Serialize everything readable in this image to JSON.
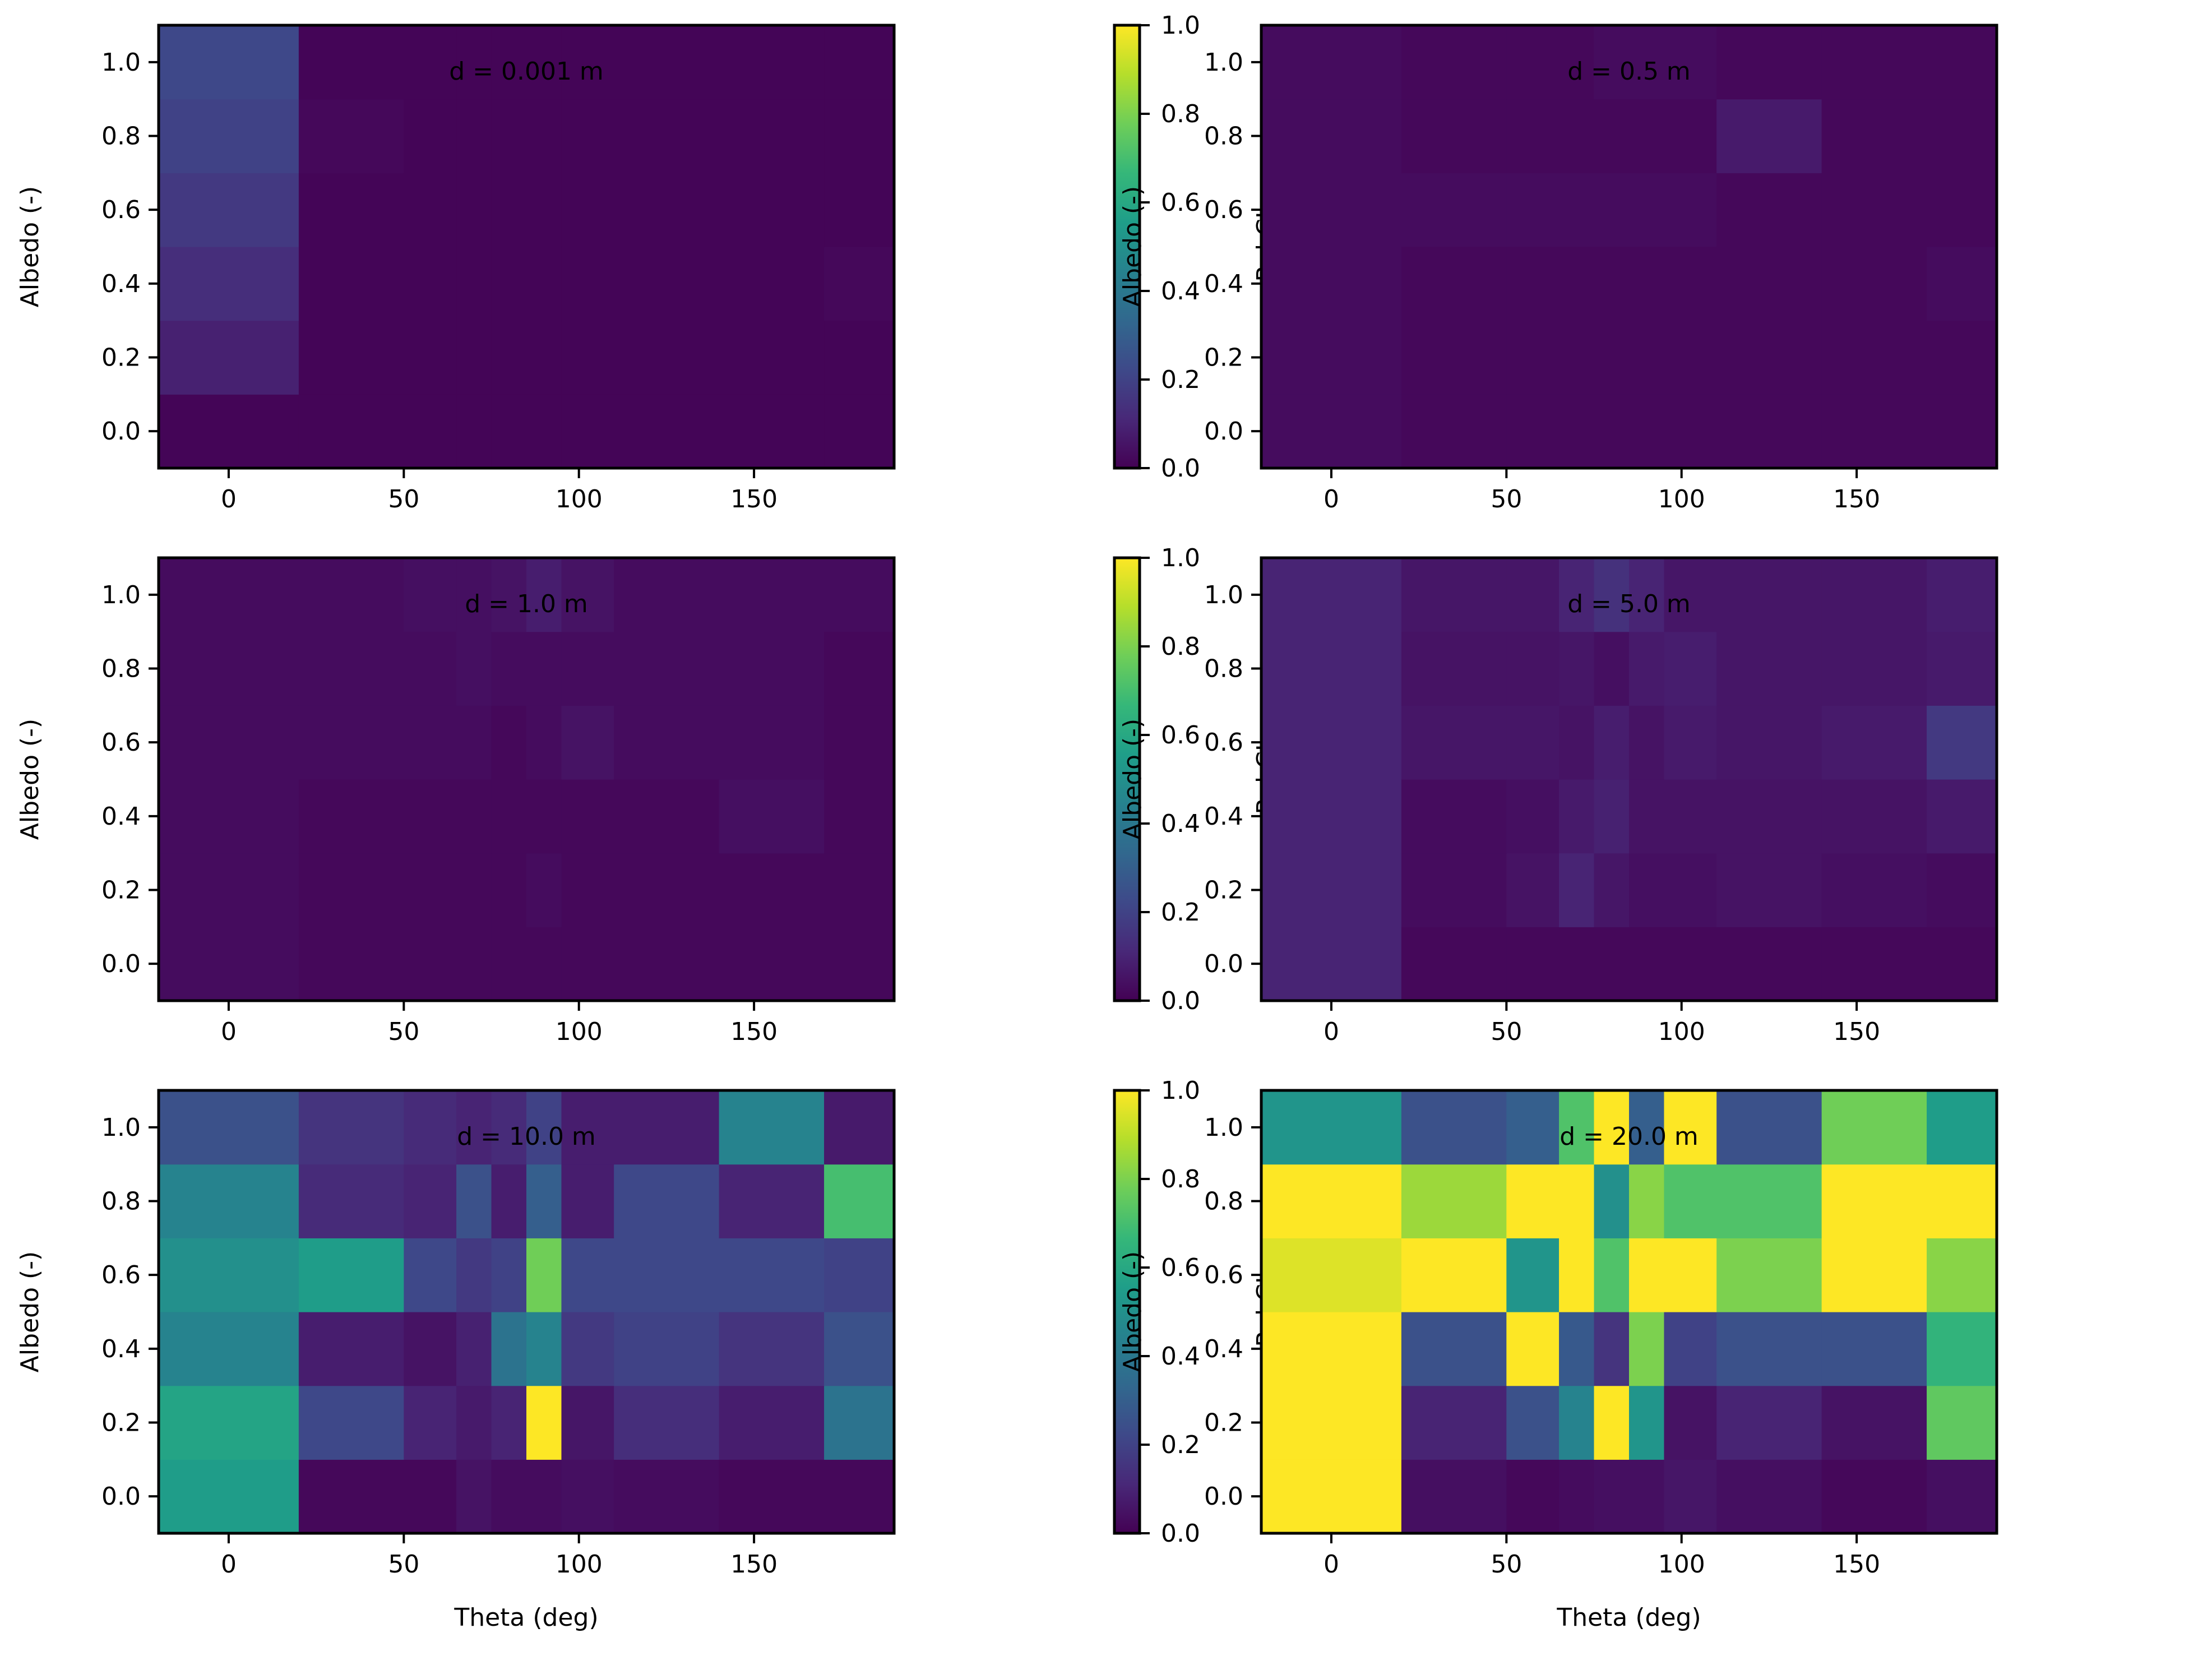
{
  "figure": {
    "xlabel": "Theta (deg)",
    "ylabel": "Albedo (-)",
    "colorbar_label": "Rel CI",
    "colormap": "viridis",
    "colormap_stops": [
      "#440154",
      "#482878",
      "#3e4989",
      "#31688e",
      "#26828e",
      "#1f9e89",
      "#35b779",
      "#6ece58",
      "#b5de2b",
      "#fde725"
    ]
  },
  "chart_data": [
    {
      "type": "heatmap",
      "title": "d = 0.001 m",
      "xlabel": "",
      "ylabel": "Albedo (-)",
      "x_edges": [
        -20,
        20,
        50,
        65,
        75,
        85,
        95,
        110,
        140,
        170,
        190
      ],
      "albedo": [
        0.0,
        0.2,
        0.4,
        0.6,
        0.8,
        1.0
      ],
      "x_ticks": [
        0,
        50,
        100,
        150
      ],
      "y_ticks": [
        0.0,
        0.2,
        0.4,
        0.6,
        0.8,
        1.0
      ],
      "xlim": [
        -20,
        190
      ],
      "ylim": [
        -0.1,
        1.1
      ],
      "values": [
        [
          0.01,
          0.01,
          0.01,
          0.01,
          0.01,
          0.01,
          0.01,
          0.01,
          0.01,
          0.01
        ],
        [
          0.09,
          0.01,
          0.01,
          0.01,
          0.01,
          0.01,
          0.01,
          0.01,
          0.01,
          0.01
        ],
        [
          0.13,
          0.01,
          0.01,
          0.01,
          0.01,
          0.01,
          0.01,
          0.01,
          0.01,
          0.02
        ],
        [
          0.17,
          0.01,
          0.01,
          0.01,
          0.01,
          0.01,
          0.01,
          0.01,
          0.01,
          0.01
        ],
        [
          0.2,
          0.02,
          0.01,
          0.01,
          0.01,
          0.01,
          0.01,
          0.01,
          0.01,
          0.01
        ],
        [
          0.22,
          0.01,
          0.01,
          0.01,
          0.01,
          0.01,
          0.01,
          0.01,
          0.01,
          0.01
        ]
      ],
      "colorbar": {
        "label": "Rel CI",
        "ticks": [
          "0.0",
          "0.2",
          "0.4",
          "0.6",
          "0.8",
          "1.0"
        ],
        "range": [
          0,
          1
        ]
      }
    },
    {
      "type": "heatmap",
      "title": "d = 0.5 m",
      "xlabel": "",
      "ylabel": "Albedo (-)",
      "x_edges": [
        -20,
        20,
        50,
        65,
        75,
        85,
        95,
        110,
        140,
        170,
        190
      ],
      "albedo": [
        0.0,
        0.2,
        0.4,
        0.6,
        0.8,
        1.0
      ],
      "x_ticks": [
        0,
        50,
        100,
        150
      ],
      "y_ticks": [
        0.0,
        0.2,
        0.4,
        0.6,
        0.8,
        1.0
      ],
      "xlim": [
        -20,
        190
      ],
      "ylim": [
        -0.1,
        1.1
      ],
      "values": [
        [
          0.03,
          0.02,
          0.02,
          0.02,
          0.02,
          0.02,
          0.02,
          0.02,
          0.02,
          0.02
        ],
        [
          0.03,
          0.02,
          0.02,
          0.02,
          0.02,
          0.02,
          0.02,
          0.02,
          0.02,
          0.02
        ],
        [
          0.03,
          0.02,
          0.02,
          0.02,
          0.02,
          0.02,
          0.02,
          0.02,
          0.02,
          0.03
        ],
        [
          0.03,
          0.03,
          0.03,
          0.03,
          0.03,
          0.03,
          0.03,
          0.02,
          0.02,
          0.02
        ],
        [
          0.03,
          0.02,
          0.02,
          0.02,
          0.02,
          0.02,
          0.02,
          0.07,
          0.02,
          0.02
        ],
        [
          0.03,
          0.02,
          0.02,
          0.02,
          0.03,
          0.03,
          0.03,
          0.02,
          0.02,
          0.02
        ]
      ],
      "colorbar": {
        "label": "Rel CI",
        "ticks": [
          "0.0",
          "0.2",
          "0.4",
          "0.6",
          "0.8",
          "1.0"
        ],
        "range": [
          0,
          1
        ]
      }
    },
    {
      "type": "heatmap",
      "title": "d = 1.0 m",
      "xlabel": "",
      "ylabel": "Albedo (-)",
      "x_edges": [
        -20,
        20,
        50,
        65,
        75,
        85,
        95,
        110,
        140,
        170,
        190
      ],
      "albedo": [
        0.0,
        0.2,
        0.4,
        0.6,
        0.8,
        1.0
      ],
      "x_ticks": [
        0,
        50,
        100,
        150
      ],
      "y_ticks": [
        0.0,
        0.2,
        0.4,
        0.6,
        0.8,
        1.0
      ],
      "xlim": [
        -20,
        190
      ],
      "ylim": [
        -0.1,
        1.1
      ],
      "values": [
        [
          0.03,
          0.02,
          0.02,
          0.02,
          0.02,
          0.02,
          0.02,
          0.02,
          0.02,
          0.02
        ],
        [
          0.03,
          0.02,
          0.02,
          0.02,
          0.02,
          0.03,
          0.02,
          0.02,
          0.02,
          0.02
        ],
        [
          0.03,
          0.02,
          0.02,
          0.02,
          0.02,
          0.02,
          0.02,
          0.02,
          0.04,
          0.02
        ],
        [
          0.03,
          0.03,
          0.03,
          0.03,
          0.02,
          0.03,
          0.05,
          0.03,
          0.03,
          0.02
        ],
        [
          0.03,
          0.03,
          0.03,
          0.04,
          0.03,
          0.03,
          0.03,
          0.03,
          0.03,
          0.02
        ],
        [
          0.03,
          0.03,
          0.04,
          0.04,
          0.05,
          0.08,
          0.05,
          0.03,
          0.03,
          0.03
        ]
      ],
      "colorbar": {
        "label": "Rel CI",
        "ticks": [
          "0.0",
          "0.2",
          "0.4",
          "0.6",
          "0.8",
          "1.0"
        ],
        "range": [
          0,
          1
        ]
      }
    },
    {
      "type": "heatmap",
      "title": "d = 5.0 m",
      "xlabel": "",
      "ylabel": "Albedo (-)",
      "x_edges": [
        -20,
        20,
        50,
        65,
        75,
        85,
        95,
        110,
        140,
        170,
        190
      ],
      "albedo": [
        0.0,
        0.2,
        0.4,
        0.6,
        0.8,
        1.0
      ],
      "x_ticks": [
        0,
        50,
        100,
        150
      ],
      "y_ticks": [
        0.0,
        0.2,
        0.4,
        0.6,
        0.8,
        1.0
      ],
      "xlim": [
        -20,
        190
      ],
      "ylim": [
        -0.1,
        1.1
      ],
      "values": [
        [
          0.1,
          0.02,
          0.02,
          0.02,
          0.02,
          0.02,
          0.02,
          0.02,
          0.02,
          0.02
        ],
        [
          0.1,
          0.03,
          0.05,
          0.1,
          0.06,
          0.04,
          0.04,
          0.05,
          0.04,
          0.03
        ],
        [
          0.1,
          0.03,
          0.04,
          0.07,
          0.09,
          0.05,
          0.05,
          0.05,
          0.05,
          0.07
        ],
        [
          0.1,
          0.06,
          0.06,
          0.05,
          0.08,
          0.05,
          0.07,
          0.06,
          0.07,
          0.17
        ],
        [
          0.1,
          0.05,
          0.05,
          0.06,
          0.04,
          0.07,
          0.08,
          0.06,
          0.06,
          0.07
        ],
        [
          0.1,
          0.06,
          0.06,
          0.1,
          0.14,
          0.1,
          0.06,
          0.06,
          0.06,
          0.08
        ]
      ],
      "colorbar": {
        "label": "Rel CI",
        "ticks": [
          "0.0",
          "0.2",
          "0.4",
          "0.6",
          "0.8",
          "1.0"
        ],
        "range": [
          0,
          1
        ]
      }
    },
    {
      "type": "heatmap",
      "title": "d = 10.0 m",
      "xlabel": "Theta (deg)",
      "ylabel": "Albedo (-)",
      "x_edges": [
        -20,
        20,
        50,
        65,
        75,
        85,
        95,
        110,
        140,
        170,
        190
      ],
      "albedo": [
        0.0,
        0.2,
        0.4,
        0.6,
        0.8,
        1.0
      ],
      "x_ticks": [
        0,
        50,
        100,
        150
      ],
      "y_ticks": [
        0.0,
        0.2,
        0.4,
        0.6,
        0.8,
        1.0
      ],
      "xlim": [
        -20,
        190
      ],
      "ylim": [
        -0.1,
        1.1
      ],
      "values": [
        [
          0.55,
          0.02,
          0.02,
          0.05,
          0.03,
          0.03,
          0.04,
          0.03,
          0.02,
          0.02
        ],
        [
          0.58,
          0.22,
          0.1,
          0.07,
          0.1,
          1.0,
          0.06,
          0.13,
          0.08,
          0.38
        ],
        [
          0.45,
          0.08,
          0.05,
          0.09,
          0.38,
          0.45,
          0.17,
          0.2,
          0.15,
          0.25
        ],
        [
          0.5,
          0.55,
          0.22,
          0.17,
          0.2,
          0.78,
          0.22,
          0.22,
          0.22,
          0.2
        ],
        [
          0.45,
          0.12,
          0.1,
          0.25,
          0.08,
          0.3,
          0.08,
          0.22,
          0.1,
          0.7
        ],
        [
          0.25,
          0.15,
          0.12,
          0.1,
          0.12,
          0.2,
          0.08,
          0.08,
          0.45,
          0.07
        ]
      ],
      "colorbar": {
        "label": "Rel CI",
        "ticks": [
          "0.0",
          "0.2",
          "0.4",
          "0.6",
          "0.8",
          "1.0"
        ],
        "range": [
          0,
          1
        ]
      }
    },
    {
      "type": "heatmap",
      "title": "d = 20.0 m",
      "xlabel": "Theta (deg)",
      "ylabel": "Albedo (-)",
      "x_edges": [
        -20,
        20,
        50,
        65,
        75,
        85,
        95,
        110,
        140,
        170,
        190
      ],
      "albedo": [
        0.0,
        0.2,
        0.4,
        0.6,
        0.8,
        1.0
      ],
      "x_ticks": [
        0,
        50,
        100,
        150
      ],
      "y_ticks": [
        0.0,
        0.2,
        0.4,
        0.6,
        0.8,
        1.0
      ],
      "xlim": [
        -20,
        190
      ],
      "ylim": [
        -0.1,
        1.1
      ],
      "values": [
        [
          1.0,
          0.04,
          0.02,
          0.03,
          0.04,
          0.04,
          0.06,
          0.04,
          0.02,
          0.04
        ],
        [
          1.0,
          0.1,
          0.25,
          0.45,
          1.0,
          0.52,
          0.05,
          0.1,
          0.05,
          0.75
        ],
        [
          1.0,
          0.25,
          1.0,
          0.28,
          0.15,
          0.8,
          0.2,
          0.25,
          0.25,
          0.65
        ],
        [
          0.95,
          1.0,
          0.52,
          1.0,
          0.72,
          1.0,
          1.0,
          0.8,
          1.0,
          0.82
        ],
        [
          1.0,
          0.85,
          1.0,
          1.0,
          0.5,
          0.82,
          0.72,
          0.72,
          1.0,
          1.0
        ],
        [
          0.52,
          0.25,
          0.3,
          0.72,
          1.0,
          0.3,
          1.0,
          0.25,
          0.78,
          0.55
        ]
      ],
      "colorbar": {
        "label": "Rel CI",
        "ticks": [
          "0.0",
          "0.2",
          "0.4",
          "0.6",
          "0.8",
          "1.0"
        ],
        "range": [
          0,
          1
        ]
      }
    }
  ]
}
